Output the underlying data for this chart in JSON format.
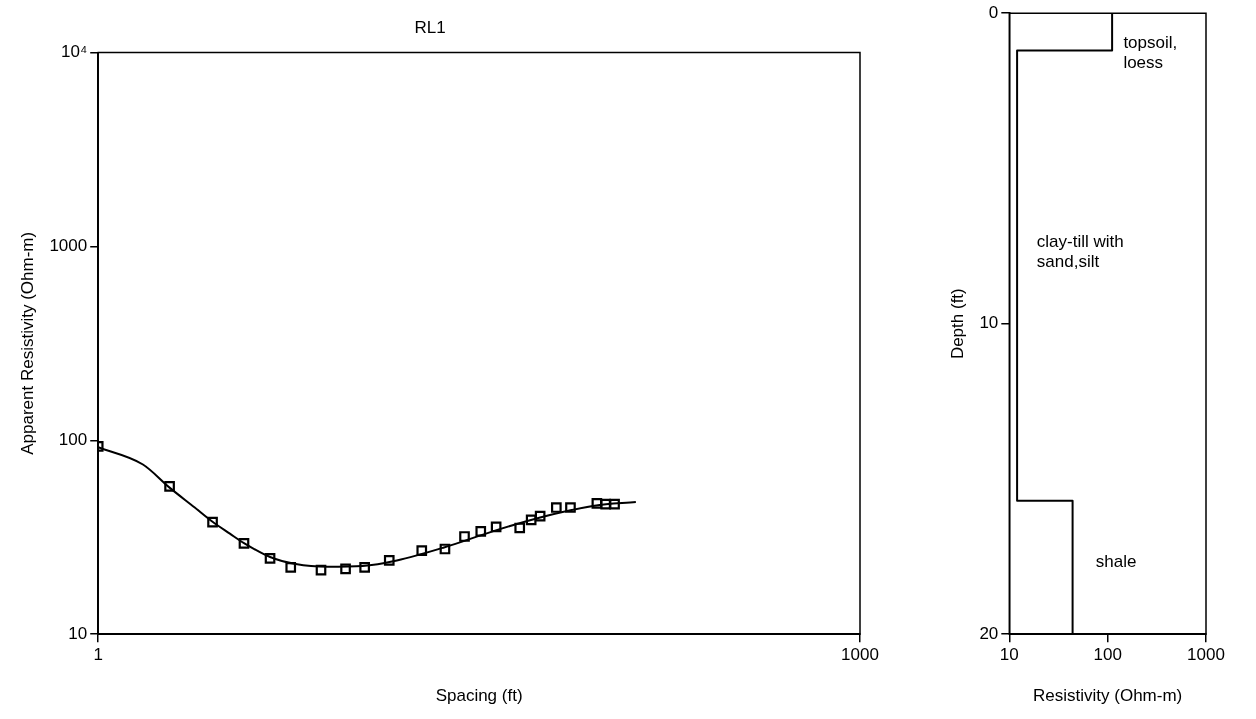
{
  "chart_data": [
    {
      "type": "scatter",
      "title": "RL1",
      "xlabel": "Spacing (ft)",
      "ylabel": "Apparent Resistivity (Ohm-m)",
      "log": "xy",
      "xlim": [
        1,
        1000
      ],
      "ylim": [
        10,
        10000
      ],
      "xticks": [
        1,
        1000
      ],
      "yticks": [
        10,
        100,
        1000,
        {
          "value": 10000,
          "label": "10⁴"
        }
      ],
      "series": [
        {
          "marker": "square",
          "color": "#000000",
          "x": [
            1,
            1.91,
            2.82,
            3.75,
            4.75,
            5.73,
            7.54,
            9.42,
            11.2,
            14,
            18.8,
            23.2,
            27.7,
            32.1,
            36.9,
            45.7,
            50.7,
            55,
            63.7,
            72.4,
            92,
            99.6,
            108
          ],
          "values": [
            93,
            57.8,
            37.8,
            29.4,
            24.6,
            22.1,
            21.4,
            21.7,
            22.1,
            24,
            27,
            27.5,
            31.9,
            33.9,
            35.8,
            35.3,
            38.9,
            40.6,
            45,
            45,
            47.3,
            46.8,
            46.8
          ]
        },
        {
          "type": "line",
          "marker": "none",
          "color": "#000000",
          "x": [
            1,
            1.5,
            1.91,
            2.4,
            2.82,
            3.3,
            3.75,
            4.75,
            6,
            8,
            11,
            15,
            23,
            36,
            55,
            90,
            131
          ],
          "values": [
            92,
            75,
            57,
            45,
            38,
            33,
            29.5,
            25,
            23,
            22.3,
            22.5,
            24,
            28,
            34,
            40,
            46,
            48
          ]
        }
      ]
    },
    {
      "type": "line",
      "xlabel": "Resistivity (Ohm-m)",
      "ylabel": "Depth (ft)",
      "log": "x",
      "xlim": [
        10,
        1000
      ],
      "ylim": [
        20,
        0
      ],
      "xticks": [
        10,
        100,
        1000
      ],
      "yticks": [
        0,
        10,
        20
      ],
      "series": [
        {
          "marker": "none",
          "color": "#000000",
          "x": [
            111,
            111,
            12,
            12,
            44,
            44
          ],
          "values": [
            0,
            1.2,
            1.2,
            15.7,
            15.7,
            20
          ]
        }
      ],
      "annotations": [
        "topsoil,\nloess",
        "clay-till with\nsand,silt",
        "shale"
      ]
    }
  ]
}
